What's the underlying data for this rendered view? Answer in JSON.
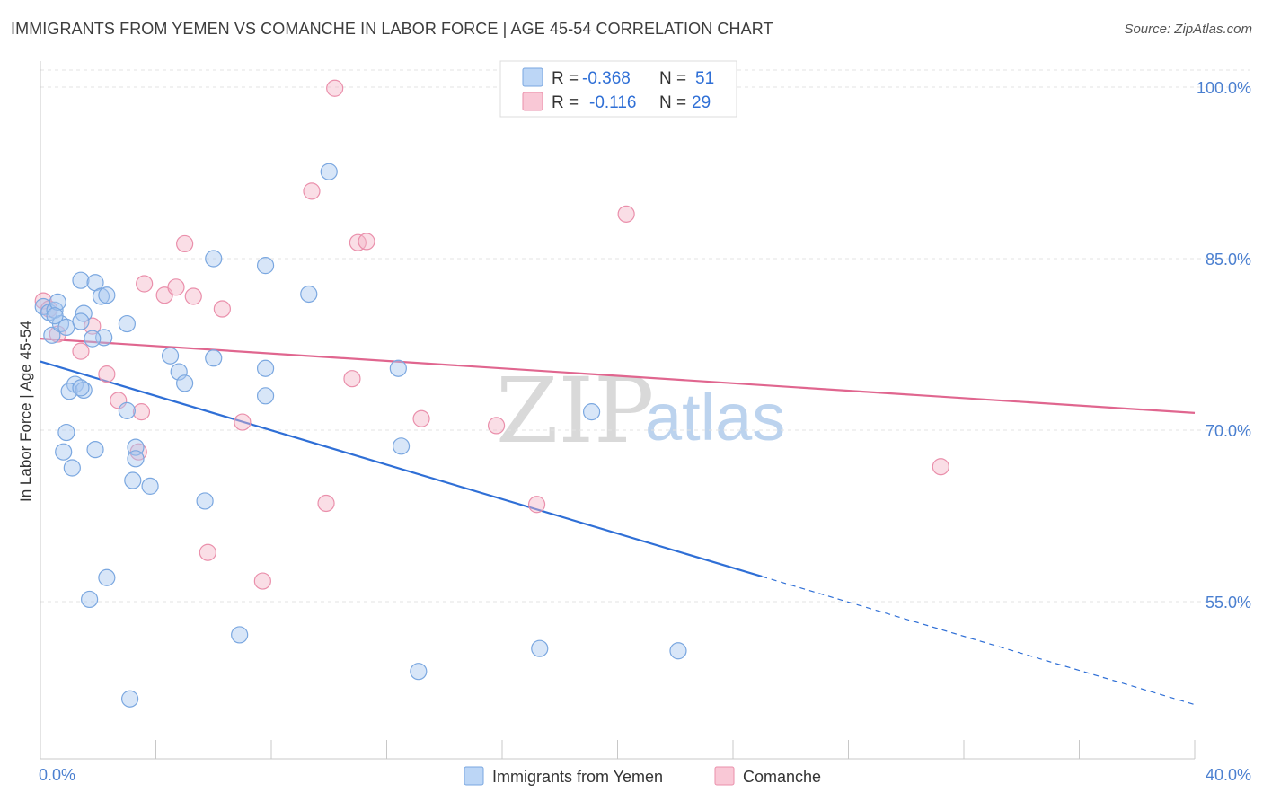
{
  "title": "IMMIGRANTS FROM YEMEN VS COMANCHE IN LABOR FORCE | AGE 45-54 CORRELATION CHART",
  "source": "Source: ZipAtlas.com",
  "watermark": {
    "zip": "ZIP",
    "atlas": "atlas"
  },
  "colors": {
    "blue_fill": "#a9c8f0",
    "blue_stroke": "#7aa7e0",
    "blue_line": "#2f6fd6",
    "pink_fill": "#f5b5c8",
    "pink_stroke": "#ea8fab",
    "pink_line": "#e0668f",
    "grid": "#e3e3e3",
    "axis_text": "#4a7fd0"
  },
  "legend": {
    "rows": [
      {
        "r_label": "R =",
        "r_value": "-0.368",
        "n_label": "N =",
        "n_value": "51",
        "series": "blue"
      },
      {
        "r_label": "R =",
        "r_value": "-0.116",
        "n_label": "N =",
        "n_value": "29",
        "series": "pink"
      }
    ]
  },
  "chart_data": {
    "type": "scatter",
    "title": "IMMIGRANTS FROM YEMEN VS COMANCHE IN LABOR FORCE | AGE 45-54 CORRELATION CHART",
    "xlabel": "",
    "ylabel": "In Labor Force | Age 45-54",
    "xlim": [
      0,
      40
    ],
    "ylim": [
      40,
      102
    ],
    "x_tick_labels": [
      "0.0%",
      "40.0%"
    ],
    "y_ticks": [
      55,
      70,
      85,
      100
    ],
    "y_tick_labels": [
      "55.0%",
      "70.0%",
      "85.0%",
      "100.0%"
    ],
    "series": [
      {
        "name": "Immigrants from Yemen",
        "color": "blue",
        "points": [
          [
            0.1,
            80.8
          ],
          [
            0.3,
            80.3
          ],
          [
            0.5,
            80.5
          ],
          [
            0.6,
            81.2
          ],
          [
            0.4,
            78.3
          ],
          [
            0.7,
            79.3
          ],
          [
            0.9,
            79.0
          ],
          [
            1.4,
            83.1
          ],
          [
            1.9,
            82.9
          ],
          [
            2.1,
            81.7
          ],
          [
            1.5,
            80.2
          ],
          [
            2.3,
            81.8
          ],
          [
            2.2,
            78.1
          ],
          [
            1.8,
            78.0
          ],
          [
            3.0,
            79.3
          ],
          [
            1.2,
            74.0
          ],
          [
            1.0,
            73.4
          ],
          [
            1.5,
            73.5
          ],
          [
            1.4,
            73.7
          ],
          [
            3.0,
            71.7
          ],
          [
            0.9,
            69.8
          ],
          [
            0.8,
            68.1
          ],
          [
            1.9,
            68.3
          ],
          [
            1.1,
            66.7
          ],
          [
            3.3,
            68.5
          ],
          [
            3.3,
            67.5
          ],
          [
            3.2,
            65.6
          ],
          [
            3.8,
            65.1
          ],
          [
            4.5,
            76.5
          ],
          [
            4.8,
            75.1
          ],
          [
            5.0,
            74.1
          ],
          [
            6.0,
            76.3
          ],
          [
            5.7,
            63.8
          ],
          [
            6.0,
            85.0
          ],
          [
            7.8,
            84.4
          ],
          [
            7.8,
            75.4
          ],
          [
            7.8,
            73.0
          ],
          [
            9.3,
            81.9
          ],
          [
            10.0,
            92.6
          ],
          [
            12.4,
            75.4
          ],
          [
            12.5,
            68.6
          ],
          [
            19.1,
            71.6
          ],
          [
            2.3,
            57.1
          ],
          [
            1.7,
            55.2
          ],
          [
            6.9,
            52.1
          ],
          [
            13.1,
            48.9
          ],
          [
            17.3,
            50.9
          ],
          [
            22.1,
            50.7
          ],
          [
            3.1,
            46.5
          ],
          [
            0.5,
            80.0
          ],
          [
            1.4,
            79.5
          ]
        ]
      },
      {
        "name": "Comanche",
        "color": "pink",
        "points": [
          [
            0.1,
            81.3
          ],
          [
            0.3,
            80.6
          ],
          [
            0.6,
            78.4
          ],
          [
            1.8,
            79.1
          ],
          [
            1.4,
            76.9
          ],
          [
            2.3,
            74.9
          ],
          [
            2.7,
            72.6
          ],
          [
            3.5,
            71.6
          ],
          [
            3.4,
            68.1
          ],
          [
            3.6,
            82.8
          ],
          [
            4.3,
            81.8
          ],
          [
            4.7,
            82.5
          ],
          [
            5.3,
            81.7
          ],
          [
            5.0,
            86.3
          ],
          [
            6.3,
            80.6
          ],
          [
            7.0,
            70.7
          ],
          [
            5.8,
            59.3
          ],
          [
            7.7,
            56.8
          ],
          [
            9.4,
            90.9
          ],
          [
            10.2,
            99.9
          ],
          [
            11.0,
            86.4
          ],
          [
            11.3,
            86.5
          ],
          [
            10.8,
            74.5
          ],
          [
            9.9,
            63.6
          ],
          [
            13.2,
            71.0
          ],
          [
            15.8,
            70.4
          ],
          [
            17.2,
            63.5
          ],
          [
            20.3,
            88.9
          ],
          [
            31.2,
            66.8
          ]
        ]
      }
    ],
    "trend_lines": [
      {
        "series": "Immigrants from Yemen",
        "x_start": 0,
        "y_start": 76.0,
        "x_solid_end": 25.0,
        "y_solid_end": 57.2,
        "x_end": 40,
        "y_end": 46.0
      },
      {
        "series": "Comanche",
        "x_start": 0,
        "y_start": 78.0,
        "x_end": 40,
        "y_end": 71.5
      }
    ],
    "legend_entries": [
      "Immigrants from Yemen",
      "Comanche"
    ]
  }
}
